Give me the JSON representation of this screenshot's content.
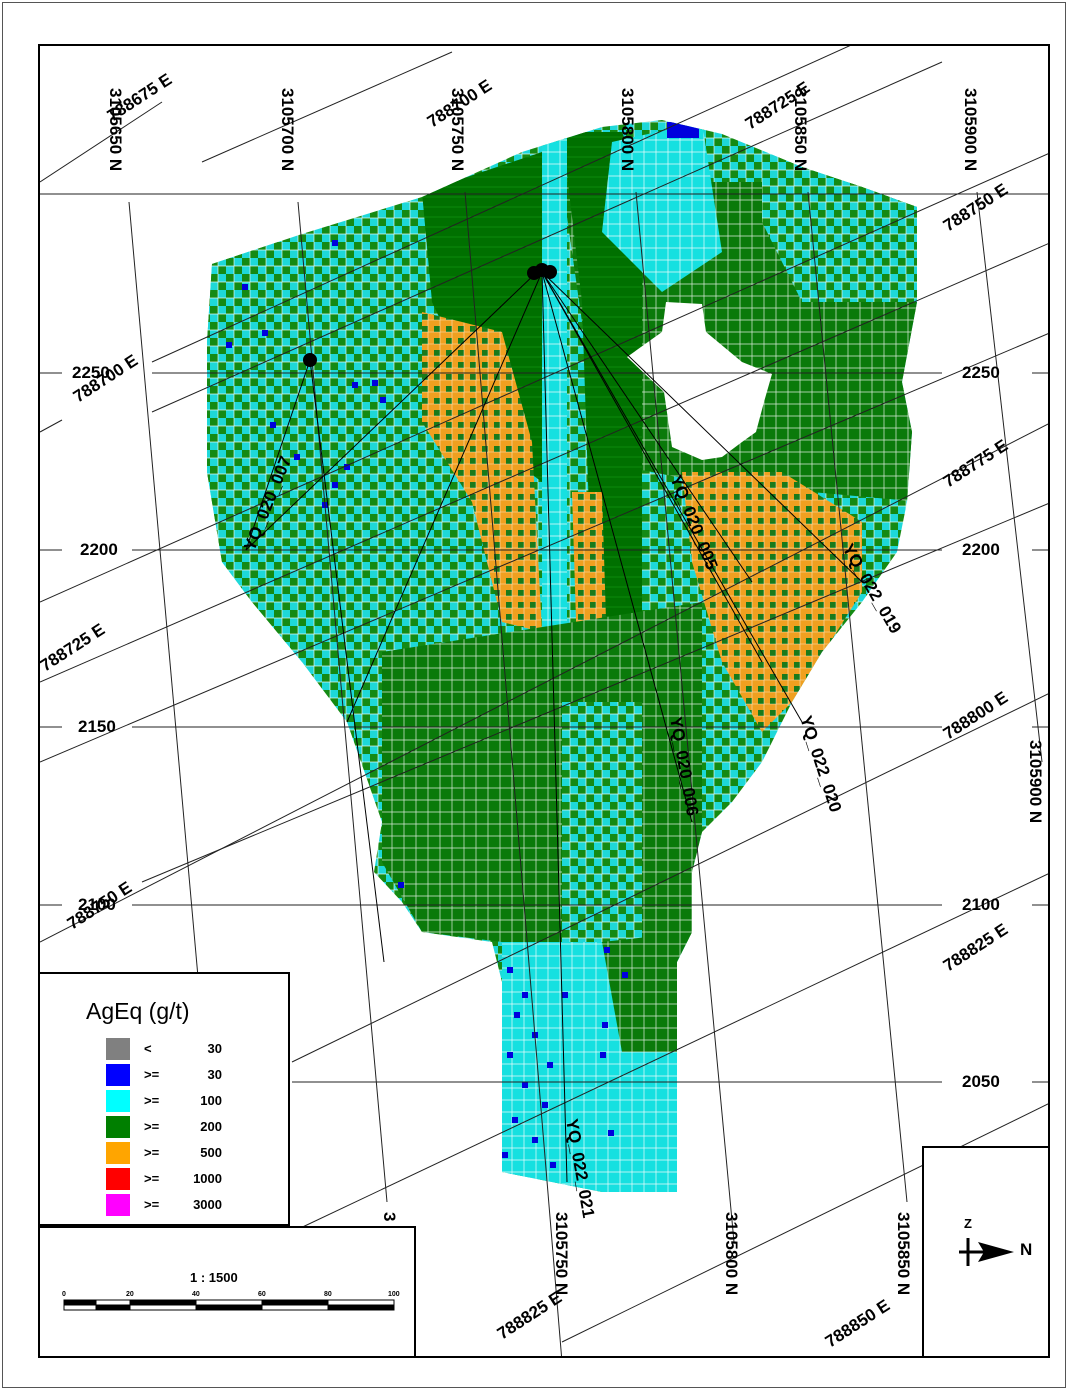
{
  "legend": {
    "title": "AgEq  (g/t)",
    "items": [
      {
        "op": "<",
        "value": "30",
        "color": "#808080"
      },
      {
        "op": ">=",
        "value": "30",
        "color": "#0000ff"
      },
      {
        "op": ">=",
        "value": "100",
        "color": "#00ffff"
      },
      {
        "op": ">=",
        "value": "200",
        "color": "#007f00"
      },
      {
        "op": ">=",
        "value": "500",
        "color": "#ffa500"
      },
      {
        "op": ">=",
        "value": "1000",
        "color": "#ff0000"
      },
      {
        "op": ">=",
        "value": "3000",
        "color": "#ff00ff"
      }
    ]
  },
  "scale": {
    "ratio": "1 : 1500",
    "ticks": [
      "0",
      "20",
      "40",
      "60",
      "80",
      "100"
    ]
  },
  "north_arrow": {
    "z": "Z",
    "n": "N"
  },
  "elevations": [
    "2250",
    "2200",
    "2150",
    "2100",
    "2050"
  ],
  "northing_labels_top": [
    "3105650 N",
    "3105700 N",
    "3105750 N",
    "3105800 N",
    "3105850 N",
    "3105900 N"
  ],
  "northing_labels_bottom": [
    "3",
    "3105750 N",
    "3105800 N",
    "3105850 N"
  ],
  "northing_labels_right": [
    "3105900 N"
  ],
  "easting_labels": [
    "788675 E",
    "788700 E",
    "788725 E",
    "788750 E",
    "788775 E",
    "788800 E",
    "788825 E",
    "788850 E"
  ],
  "easting_labels_left": [
    "788700 E",
    "788725 E",
    "788750 E"
  ],
  "easting_labels_bottom": [
    "788825 E",
    "788850 E"
  ],
  "drill_holes": [
    "YQ_020_007",
    "YQ_020_005",
    "YQ_022_019",
    "YQ_022_020",
    "YQ_020_006",
    "YQ_022_021"
  ]
}
